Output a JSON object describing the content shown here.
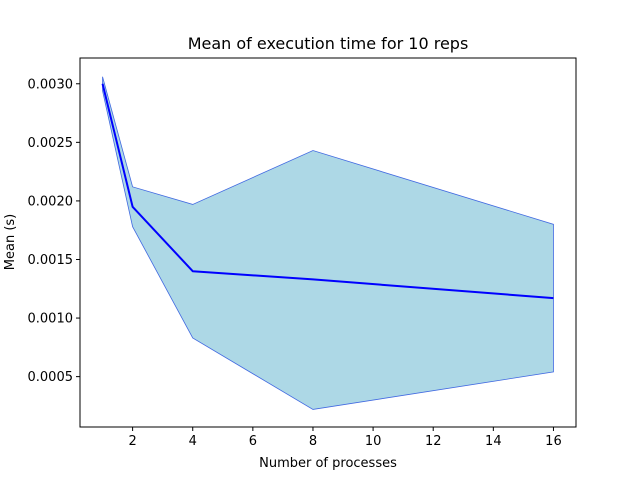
{
  "chart_data": {
    "type": "line",
    "title": "Mean of execution time for 10 reps",
    "xlabel": "Number of processes",
    "ylabel": "Mean (s)",
    "x": [
      1,
      2,
      4,
      8,
      16
    ],
    "series": [
      {
        "values": [
          0.003,
          0.00195,
          0.0014,
          0.00133,
          0.00117
        ],
        "color": "#0000ff"
      }
    ],
    "band": {
      "upper": [
        0.00306,
        0.00212,
        0.00197,
        0.00243,
        0.0018
      ],
      "lower": [
        0.00294,
        0.00178,
        0.00083,
        0.00022,
        0.00054
      ],
      "fill": "#add8e6",
      "edge": "#4169e1"
    },
    "xlim": [
      0.25,
      16.75
    ],
    "ylim": [
      7e-05,
      0.00322
    ],
    "xticks": [
      2,
      4,
      6,
      8,
      10,
      12,
      14,
      16
    ],
    "xtick_labels": [
      "2",
      "4",
      "6",
      "8",
      "10",
      "12",
      "14",
      "16"
    ],
    "yticks": [
      0.0005,
      0.001,
      0.0015,
      0.002,
      0.0025,
      0.003
    ],
    "ytick_labels": [
      "0.0005",
      "0.0010",
      "0.0015",
      "0.0020",
      "0.0025",
      "0.0030"
    ],
    "grid": false,
    "legend": false
  }
}
